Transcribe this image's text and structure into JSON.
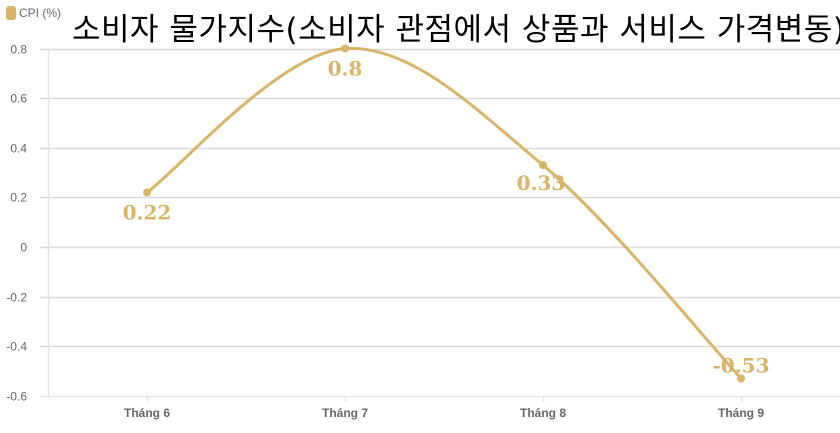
{
  "legend": {
    "label": "CPI (%)",
    "color": "#d8b468"
  },
  "title": "소비자 물가지수(소비자 관점에서 상품과 서비스 가격변동)",
  "colors": {
    "series": "#d8b468",
    "grid": "#d9d9d9",
    "tick_text": "#666666"
  },
  "chart_data": {
    "type": "line",
    "title": "소비자 물가지수(소비자 관점에서 상품과 서비스 가격변동)",
    "xlabel": "",
    "ylabel": "",
    "categories": [
      "Tháng 6",
      "Tháng 7",
      "Tháng 8",
      "Tháng 9"
    ],
    "series": [
      {
        "name": "CPI (%)",
        "values": [
          0.22,
          0.8,
          0.33,
          -0.53
        ],
        "color": "#d8b468",
        "smooth": true
      }
    ],
    "ylim": [
      -0.6,
      0.8
    ],
    "yticks": [
      0.8,
      0.6,
      0.4,
      0.2,
      0,
      -0.2,
      -0.4,
      -0.6
    ],
    "ytick_labels": [
      "0.8",
      "0.6",
      "0.4",
      "0.2",
      "0",
      "-0.2",
      "-0.4",
      "-0.6"
    ],
    "data_labels": [
      "0.22",
      "0.8",
      "0.33",
      "-0.53"
    ],
    "grid": true,
    "legend_position": "top-left"
  }
}
